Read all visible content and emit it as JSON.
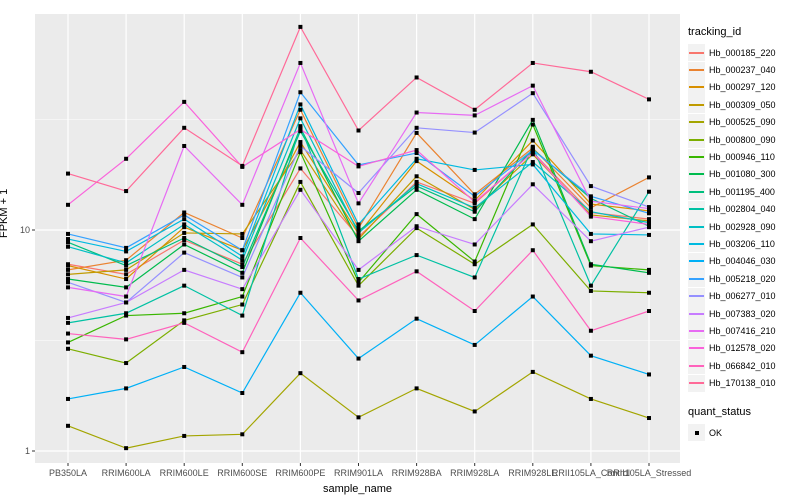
{
  "colors": {
    "panel_bg": "#EBEBEB",
    "grid_major": "#FFFFFF",
    "grid_minor": "#FFFFFF",
    "tick_text": "#4D4D4D",
    "point": "#000000",
    "legend_key_bg": "#F2F2F2"
  },
  "chart_data": {
    "type": "line",
    "xlabel": "sample_name",
    "ylabel": "FPKM + 1",
    "y_scale": "log10",
    "y_ticks": [
      "1",
      "10"
    ],
    "y_tick_values": [
      1,
      10
    ],
    "y_minor_values": [
      3.162,
      31.62
    ],
    "ylim": [
      0.87,
      96
    ],
    "grid": "on",
    "legend_position": "right",
    "legend_title": "tracking_id",
    "point_legend": {
      "title": "quant_status",
      "label": "OK"
    },
    "categories": [
      "PB350LA",
      "RRIM600LA",
      "RRIM600LE",
      "RRIM600SE",
      "RRIM600PE",
      "RRIM901LA",
      "RRIM928BA",
      "RRIM928LA",
      "RRIM928LE",
      "RRII105LA_Control",
      "RRII105LA_Stressed"
    ],
    "series": [
      {
        "name": "Hb_000185_220",
        "color": "#F8766D",
        "values": [
          7.0,
          6.3,
          9.0,
          7.0,
          19.0,
          9.3,
          16.5,
          13.2,
          22.5,
          12.0,
          11.2
        ]
      },
      {
        "name": "Hb_000237_040",
        "color": "#EA8331",
        "values": [
          6.6,
          7.3,
          12.0,
          9.2,
          35.0,
          10.2,
          27.5,
          14.5,
          23.5,
          12.6,
          17.3
        ]
      },
      {
        "name": "Hb_000297_120",
        "color": "#D89000",
        "values": [
          6.9,
          6.0,
          10.3,
          8.1,
          25.0,
          9.6,
          20.5,
          13.6,
          25.4,
          13.1,
          12.2
        ]
      },
      {
        "name": "Hb_000309_050",
        "color": "#C09B00",
        "values": [
          6.3,
          6.6,
          9.7,
          9.6,
          23.0,
          9.1,
          17.5,
          12.4,
          22.0,
          11.7,
          11.0
        ]
      },
      {
        "name": "Hb_000525_090",
        "color": "#A3A500",
        "values": [
          1.3,
          1.03,
          1.17,
          1.19,
          2.25,
          1.42,
          1.92,
          1.51,
          2.28,
          1.72,
          1.41
        ]
      },
      {
        "name": "Hb_000800_090",
        "color": "#7CAE00",
        "values": [
          2.9,
          2.5,
          3.9,
          4.6,
          16.5,
          5.6,
          10.2,
          7.0,
          10.6,
          5.3,
          5.2
        ]
      },
      {
        "name": "Hb_000946_110",
        "color": "#39B600",
        "values": [
          3.1,
          4.1,
          4.2,
          5.0,
          22.5,
          5.8,
          11.8,
          7.2,
          30.0,
          6.9,
          6.6
        ]
      },
      {
        "name": "Hb_001080_300",
        "color": "#00BB4E",
        "values": [
          6.0,
          5.5,
          8.6,
          6.4,
          29.0,
          8.9,
          15.2,
          11.2,
          31.5,
          7.0,
          6.4
        ]
      },
      {
        "name": "Hb_001195_400",
        "color": "#00BF7D",
        "values": [
          8.8,
          6.9,
          9.2,
          6.8,
          28.0,
          9.9,
          15.8,
          12.1,
          23.2,
          13.9,
          10.4
        ]
      },
      {
        "name": "Hb_002804_040",
        "color": "#00C1A3",
        "values": [
          3.8,
          4.2,
          5.6,
          4.1,
          29.5,
          6.0,
          7.7,
          6.1,
          23.8,
          5.6,
          14.9
        ]
      },
      {
        "name": "Hb_002928_090",
        "color": "#00BFC4",
        "values": [
          8.4,
          7.1,
          10.6,
          7.3,
          32.0,
          9.7,
          16.2,
          12.6,
          20.3,
          12.1,
          10.8
        ]
      },
      {
        "name": "Hb_003206_110",
        "color": "#00BAE0",
        "values": [
          9.1,
          8.0,
          11.2,
          7.6,
          37.0,
          10.6,
          21.0,
          18.7,
          19.8,
          9.6,
          9.5
        ]
      },
      {
        "name": "Hb_004046_030",
        "color": "#00B0F6",
        "values": [
          1.72,
          1.92,
          2.4,
          1.83,
          5.2,
          2.62,
          3.97,
          3.02,
          5.0,
          2.7,
          2.22
        ]
      },
      {
        "name": "Hb_005218_020",
        "color": "#35A2FF",
        "values": [
          9.6,
          8.3,
          11.7,
          8.1,
          42.0,
          19.7,
          22.3,
          14.2,
          23.0,
          14.2,
          11.9
        ]
      },
      {
        "name": "Hb_006277_010",
        "color": "#9590FF",
        "values": [
          5.8,
          4.7,
          7.9,
          6.1,
          24.0,
          14.7,
          29.0,
          27.6,
          41.6,
          15.8,
          12.7
        ]
      },
      {
        "name": "Hb_007383_020",
        "color": "#C77CFF",
        "values": [
          4.0,
          4.7,
          6.6,
          5.4,
          15.2,
          6.6,
          10.4,
          8.6,
          16.1,
          8.9,
          10.3
        ]
      },
      {
        "name": "Hb_007416_210",
        "color": "#E76BF3",
        "values": [
          5.5,
          5.0,
          24.0,
          13.0,
          57.0,
          13.2,
          34.0,
          33.0,
          45.0,
          13.5,
          12.5
        ]
      },
      {
        "name": "Hb_012578_020",
        "color": "#FA62DB",
        "values": [
          13.0,
          21.0,
          38.0,
          19.3,
          28.5,
          19.4,
          23.0,
          13.4,
          22.4,
          11.5,
          10.6
        ]
      },
      {
        "name": "Hb_066842_010",
        "color": "#FF62BC",
        "values": [
          3.4,
          3.2,
          3.8,
          2.8,
          9.2,
          4.8,
          6.5,
          4.3,
          8.1,
          3.5,
          4.3
        ]
      },
      {
        "name": "Hb_170138_010",
        "color": "#FF6A98",
        "values": [
          18.0,
          15.0,
          29.0,
          19.5,
          83.0,
          28.2,
          49.0,
          35.0,
          57.0,
          52.0,
          39.0
        ]
      }
    ]
  }
}
